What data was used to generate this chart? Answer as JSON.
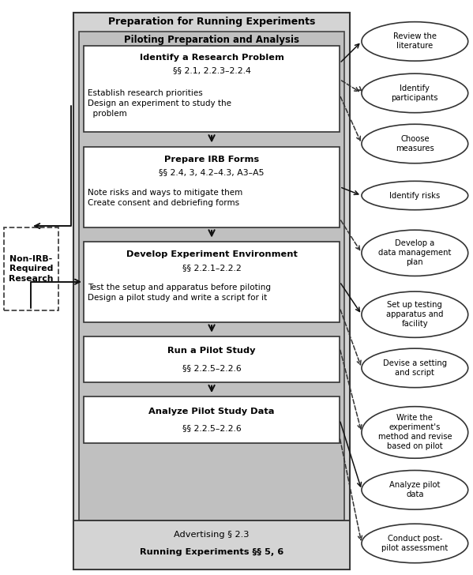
{
  "title": "Preparation for Running Experiments",
  "subtitle": "Piloting Preparation and Analysis",
  "bg_color": "#ffffff",
  "boxes": [
    {
      "title": "Identify a Research Problem",
      "sub": "§§ 2.1, 2.2.3–2.2.4",
      "body": "Establish research priorities\nDesign an experiment to study the\n  problem"
    },
    {
      "title": "Prepare IRB Forms",
      "sub": "§§ 2.4, 3, 4.2–4.3, A3–A5",
      "body": "Note risks and ways to mitigate them\nCreate consent and debriefing forms"
    },
    {
      "title": "Develop Experiment Environment",
      "sub": "§§ 2.2.1–2.2.2",
      "body": "Test the setup and apparatus before piloting\nDesign a pilot study and write a script for it"
    },
    {
      "title": "Run a Pilot Study",
      "sub": "§§ 2.2.5–2.2.6",
      "body": ""
    },
    {
      "title": "Analyze Pilot Study Data",
      "sub": "§§ 2.2.5–2.2.6",
      "body": ""
    }
  ],
  "bottom_line1": "Advertising § 2.3",
  "bottom_line2": "Running Experiments §§ 5, 6",
  "ellipses": [
    {
      "label": "Review the\nliterature"
    },
    {
      "label": "Identify\nparticipants"
    },
    {
      "label": "Choose\nmeasures"
    },
    {
      "label": "Identify risks"
    },
    {
      "label": "Develop a\ndata management\nplan"
    },
    {
      "label": "Set up testing\napparatus and\nfacility"
    },
    {
      "label": "Devise a setting\nand script"
    },
    {
      "label": "Write the\nexperiment's\nmethod and revise\nbased on pilot"
    },
    {
      "label": "Analyze pilot\ndata"
    },
    {
      "label": "Conduct post-\npilot assessment"
    }
  ],
  "nirb_label": "Non-IRB-\nRequired\nResearch"
}
